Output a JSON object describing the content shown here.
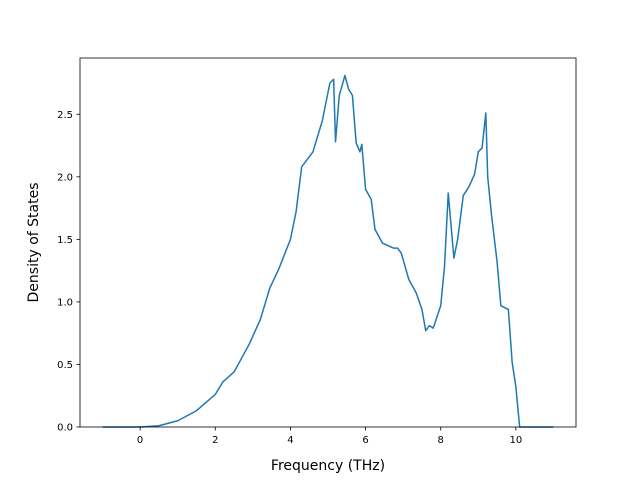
{
  "chart_data": {
    "type": "line",
    "title": "",
    "xlabel": "Frequency (THz)",
    "ylabel": "Density of States",
    "xlim": [
      -1.6,
      11.6
    ],
    "ylim": [
      0.0,
      2.95
    ],
    "xticks": [
      0,
      2,
      4,
      6,
      8,
      10
    ],
    "yticks": [
      0.0,
      0.5,
      1.0,
      1.5,
      2.0,
      2.5
    ],
    "xtick_labels": [
      "0",
      "2",
      "4",
      "6",
      "8",
      "10"
    ],
    "ytick_labels": [
      "0.0",
      "0.5",
      "1.0",
      "1.5",
      "2.0",
      "2.5"
    ],
    "grid": false,
    "series": [
      {
        "color": "#1f77b4",
        "points": [
          [
            -1.0,
            0.0
          ],
          [
            0.0,
            0.0
          ],
          [
            0.5,
            0.01
          ],
          [
            1.0,
            0.05
          ],
          [
            1.5,
            0.13
          ],
          [
            2.0,
            0.26
          ],
          [
            2.2,
            0.36
          ],
          [
            2.5,
            0.44
          ],
          [
            2.9,
            0.66
          ],
          [
            3.2,
            0.86
          ],
          [
            3.45,
            1.11
          ],
          [
            3.7,
            1.27
          ],
          [
            4.0,
            1.5
          ],
          [
            4.15,
            1.72
          ],
          [
            4.3,
            2.08
          ],
          [
            4.6,
            2.2
          ],
          [
            4.85,
            2.45
          ],
          [
            5.05,
            2.75
          ],
          [
            5.15,
            2.78
          ],
          [
            5.2,
            2.28
          ],
          [
            5.3,
            2.65
          ],
          [
            5.45,
            2.81
          ],
          [
            5.55,
            2.7
          ],
          [
            5.65,
            2.65
          ],
          [
            5.75,
            2.27
          ],
          [
            5.85,
            2.2
          ],
          [
            5.9,
            2.26
          ],
          [
            6.0,
            1.9
          ],
          [
            6.15,
            1.82
          ],
          [
            6.25,
            1.58
          ],
          [
            6.45,
            1.47
          ],
          [
            6.6,
            1.45
          ],
          [
            6.75,
            1.43
          ],
          [
            6.85,
            1.43
          ],
          [
            6.95,
            1.39
          ],
          [
            7.15,
            1.18
          ],
          [
            7.35,
            1.07
          ],
          [
            7.5,
            0.94
          ],
          [
            7.6,
            0.77
          ],
          [
            7.7,
            0.81
          ],
          [
            7.8,
            0.79
          ],
          [
            8.0,
            0.97
          ],
          [
            8.1,
            1.28
          ],
          [
            8.2,
            1.87
          ],
          [
            8.35,
            1.35
          ],
          [
            8.45,
            1.5
          ],
          [
            8.6,
            1.85
          ],
          [
            8.75,
            1.92
          ],
          [
            8.9,
            2.02
          ],
          [
            9.0,
            2.2
          ],
          [
            9.1,
            2.23
          ],
          [
            9.2,
            2.51
          ],
          [
            9.25,
            2.0
          ],
          [
            9.35,
            1.7
          ],
          [
            9.5,
            1.32
          ],
          [
            9.6,
            0.97
          ],
          [
            9.8,
            0.94
          ],
          [
            9.9,
            0.52
          ],
          [
            10.0,
            0.32
          ],
          [
            10.1,
            0.0
          ],
          [
            10.5,
            0.0
          ],
          [
            11.0,
            0.0
          ]
        ]
      }
    ]
  }
}
